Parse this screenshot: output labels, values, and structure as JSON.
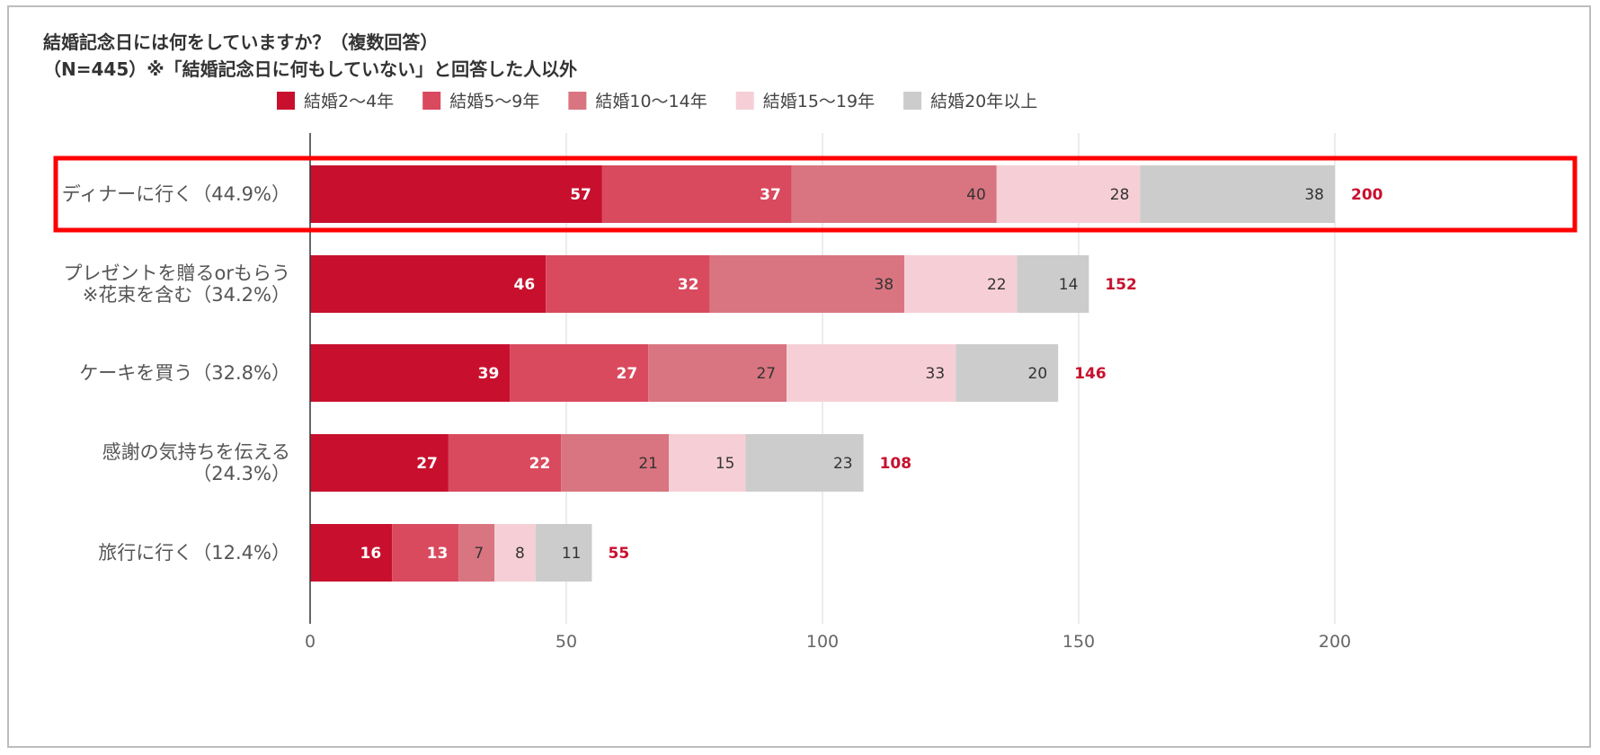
{
  "chart_data": {
    "type": "bar",
    "orientation": "horizontal",
    "stacked": true,
    "title": "結婚記念日には何をしていますか？（複数回答）",
    "subtitle": "（N=445）※「結婚記念日に何もしていない」と回答した人以外",
    "categories": [
      [
        "ディナーに行く（44.9%）"
      ],
      [
        "プレゼントを贈るorもらう",
        "※花束を含む（34.2%）"
      ],
      [
        "ケーキを買う（32.8%）"
      ],
      [
        "感謝の気持ちを伝える",
        "（24.3%）"
      ],
      [
        "旅行に行く（12.4%）"
      ]
    ],
    "series": [
      {
        "name": "結婚2〜4年",
        "color": "#c8102e",
        "label_color": "#ffffff",
        "values": [
          57,
          46,
          39,
          27,
          16
        ]
      },
      {
        "name": "結婚5〜9年",
        "color": "#d94a5e",
        "label_color": "#ffffff",
        "values": [
          37,
          32,
          27,
          22,
          13
        ]
      },
      {
        "name": "結婚10〜14年",
        "color": "#d97580",
        "label_color": "#333333",
        "values": [
          40,
          38,
          27,
          21,
          7
        ]
      },
      {
        "name": "結婚15〜19年",
        "color": "#f6cfd6",
        "label_color": "#333333",
        "values": [
          28,
          22,
          33,
          15,
          8
        ]
      },
      {
        "name": "結婚20年以上",
        "color": "#cccccc",
        "label_color": "#333333",
        "values": [
          38,
          14,
          20,
          23,
          11
        ]
      }
    ],
    "totals": [
      200,
      152,
      146,
      108,
      55
    ],
    "total_label_color": "#c8102e",
    "xlim": [
      0,
      200
    ],
    "xticks": [
      0,
      50,
      100,
      150,
      200
    ],
    "grid": true,
    "legend_position": "top",
    "highlight_category_index": 0,
    "highlight_color": "#ff0000"
  }
}
